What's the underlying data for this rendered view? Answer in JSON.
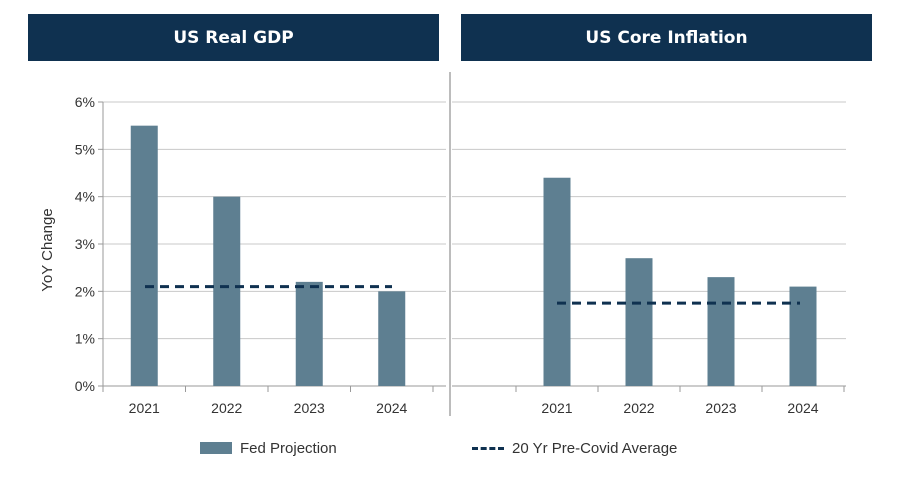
{
  "headers": {
    "left": "US Real GDP",
    "right": "US Core Inflation"
  },
  "colors": {
    "header_bg": "#0f3150",
    "bar": "#5e7f91",
    "avg_line": "#0f3150",
    "grid": "#c8c8c8"
  },
  "legend": {
    "bar_label": "Fed Projection",
    "line_label": "20 Yr Pre-Covid Average"
  },
  "chart_data": [
    {
      "type": "bar",
      "title": "US Real GDP",
      "categories": [
        "2021",
        "2022",
        "2023",
        "2024"
      ],
      "series": [
        {
          "name": "Fed Projection",
          "values": [
            5.5,
            4.0,
            2.2,
            2.0
          ]
        }
      ],
      "reference_line": {
        "name": "20 Yr Pre-Covid Average",
        "value": 2.1
      },
      "ylabel": "YoY Change",
      "xlabel": "",
      "ylim": [
        0,
        6
      ],
      "yticks": [
        "0%",
        "1%",
        "2%",
        "3%",
        "4%",
        "5%",
        "6%"
      ],
      "grid": true
    },
    {
      "type": "bar",
      "title": "US Core Inflation",
      "categories": [
        "2021",
        "2022",
        "2023",
        "2024"
      ],
      "series": [
        {
          "name": "Fed Projection",
          "values": [
            4.4,
            2.7,
            2.3,
            2.1
          ]
        }
      ],
      "reference_line": {
        "name": "20 Yr Pre-Covid Average",
        "value": 1.75
      },
      "ylabel": "",
      "xlabel": "",
      "ylim": [
        0,
        6
      ],
      "grid": true
    }
  ]
}
